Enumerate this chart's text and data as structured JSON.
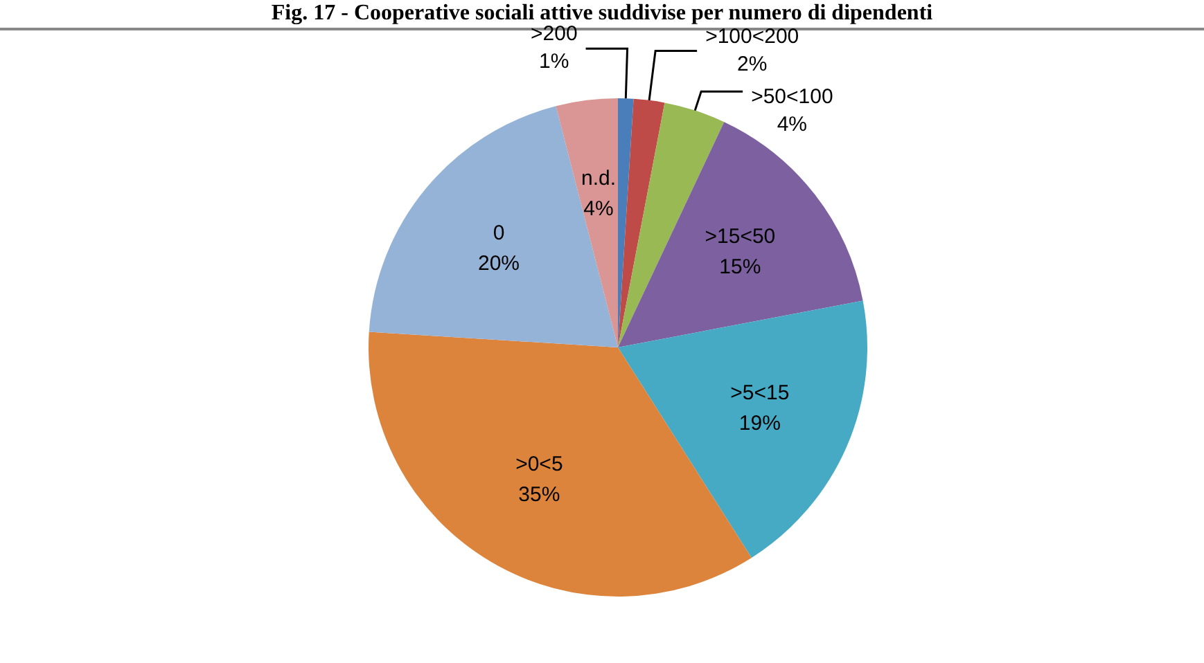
{
  "chart_data": {
    "type": "pie",
    "title": "Fig. 17 - Cooperative sociali attive suddivise per numero di dipendenti",
    "categories": [
      ">200",
      ">100<200",
      ">50<100",
      ">15<50",
      ">5<15",
      ">0<5",
      "0",
      "n.d."
    ],
    "values": [
      1,
      2,
      4,
      15,
      19,
      35,
      20,
      4
    ],
    "value_labels": [
      "1%",
      "2%",
      "4%",
      "15%",
      "19%",
      "35%",
      "20%",
      "4%"
    ],
    "colors": [
      "#4a7ebb",
      "#be4b48",
      "#98b954",
      "#7d60a0",
      "#46aac5",
      "#dd843c",
      "#95b3d7",
      "#d99694"
    ],
    "legend": false
  }
}
